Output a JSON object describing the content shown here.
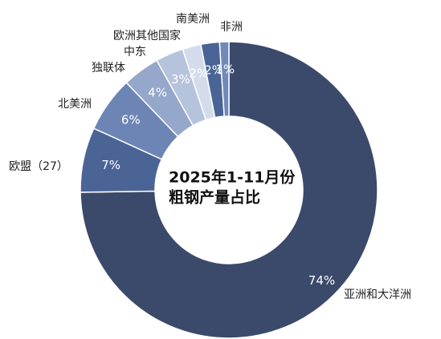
{
  "chart_data": {
    "type": "donut",
    "title_lines": [
      "2025年1-11月份",
      "粗钢产量占比"
    ],
    "categories": [
      "亚洲和大洋洲",
      "欧盟（27）",
      "北美洲",
      "独联体",
      "中东",
      "欧洲其他国家",
      "南美洲",
      "非洲"
    ],
    "values": [
      74,
      7,
      6,
      4,
      3,
      2,
      2,
      1
    ],
    "value_labels": [
      "74%",
      "7%",
      "6%",
      "4%",
      "3%",
      "2%",
      "2%",
      "1%"
    ],
    "colors": [
      "#3b4a6b",
      "#4a6496",
      "#6d85b5",
      "#95a7ca",
      "#b6c3dc",
      "#d4dcec",
      "#4a6496",
      "#7089b8"
    ]
  }
}
